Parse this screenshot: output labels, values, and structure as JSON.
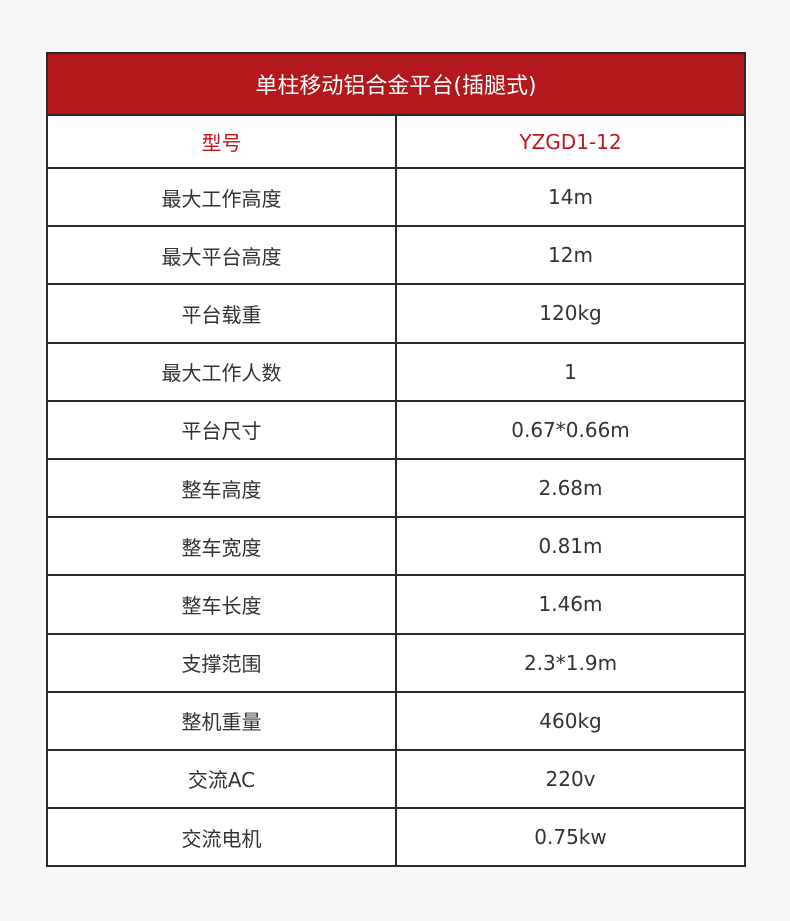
{
  "table": {
    "title": "单柱移动铝合金平台(插腿式)",
    "header": [
      "型号",
      "YZGD1-12"
    ],
    "rows": [
      [
        "最大工作高度",
        "14m"
      ],
      [
        "最大平台高度",
        "12m"
      ],
      [
        "平台载重",
        "120kg"
      ],
      [
        "最大工作人数",
        "1"
      ],
      [
        "平台尺寸",
        "0.67*0.66m"
      ],
      [
        "整车高度",
        "2.68m"
      ],
      [
        "整车宽度",
        "0.81m"
      ],
      [
        "整车长度",
        "1.46m"
      ],
      [
        "支撑范围",
        "2.3*1.9m"
      ],
      [
        "整机重量",
        "460kg"
      ],
      [
        "交流AC",
        "220v"
      ],
      [
        "交流电机",
        "0.75kw"
      ]
    ]
  }
}
